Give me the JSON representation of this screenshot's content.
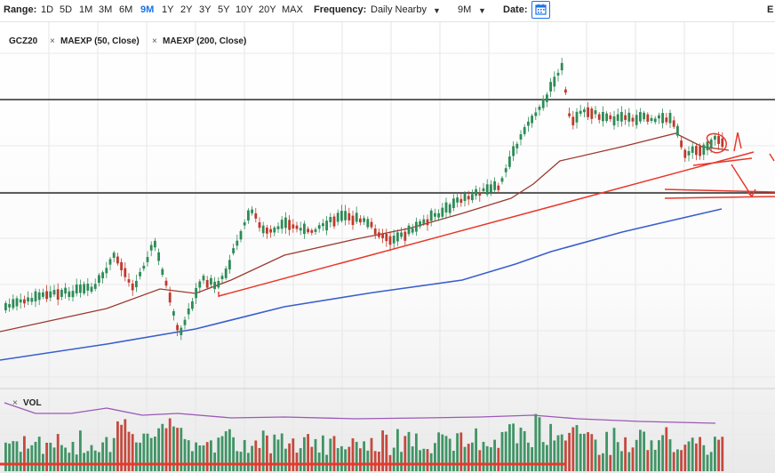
{
  "toolbar": {
    "range_label": "Range:",
    "ranges": [
      "1D",
      "5D",
      "1M",
      "3M",
      "6M",
      "9M",
      "1Y",
      "2Y",
      "3Y",
      "5Y",
      "10Y",
      "20Y",
      "MAX"
    ],
    "active_range": "9M",
    "frequency_label": "Frequency:",
    "frequency_value": "Daily Nearby",
    "period_value": "9M",
    "date_label": "Date:",
    "icons": {
      "calendar": "calendar-icon",
      "dropdown": "chevron-down-icon"
    },
    "edge_letter": "E"
  },
  "legend": {
    "symbol": "GCZ20",
    "studies": [
      "MAEXP (50, Close)",
      "MAEXP (200, Close)"
    ],
    "remove_icon": "close-icon"
  },
  "volume_panel": {
    "label": "VOL"
  },
  "colors": {
    "up": "#2e8b57",
    "down": "#c0392b",
    "ma50": "#9b3a2e",
    "ma200": "#3a5fcd",
    "vol_ma": "#9b59b6",
    "annotation": "#e8382b",
    "accent": "#1a73e8"
  }
}
